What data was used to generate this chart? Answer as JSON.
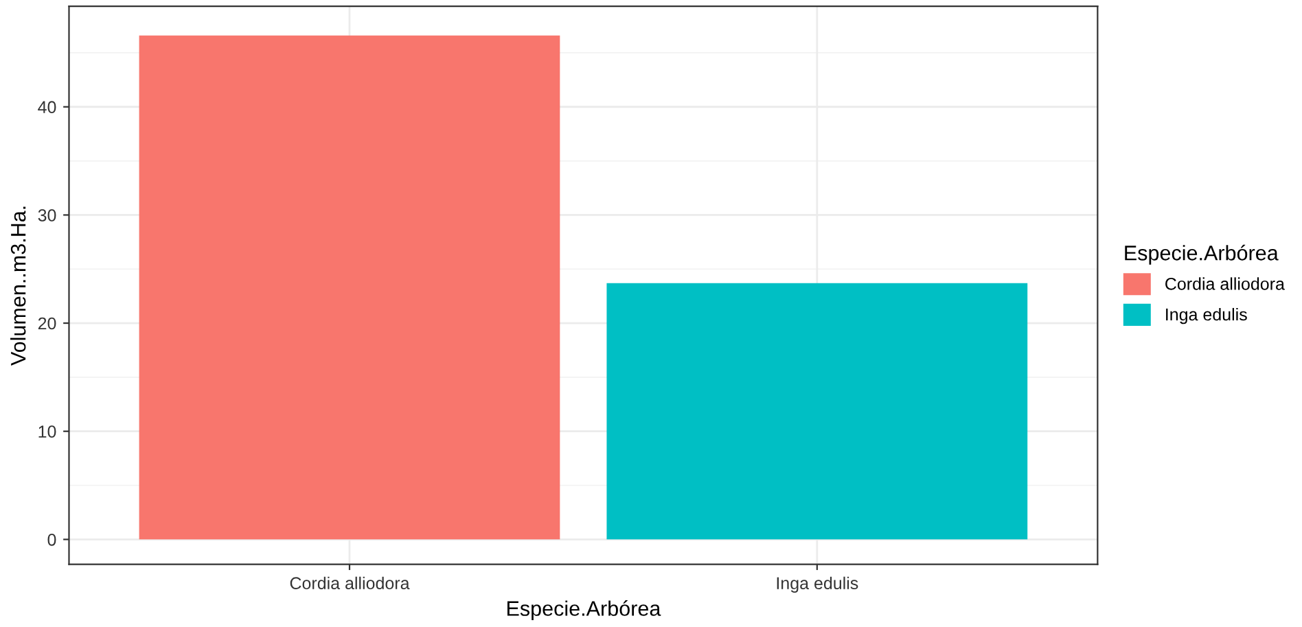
{
  "chart_data": {
    "type": "bar",
    "xlabel": "Especie.Arbórea",
    "ylabel": "Volumen..m3.Ha.",
    "legend_title": "Especie.Arbórea",
    "categories": [
      "Cordia alliodora",
      "Inga edulis"
    ],
    "series": [
      {
        "name": "Cordia alliodora",
        "color": "#f8766d",
        "values": [
          46.6,
          null
        ]
      },
      {
        "name": "Inga edulis",
        "color": "#00bfc4",
        "values": [
          null,
          23.7
        ]
      }
    ],
    "ylim": [
      -2.3,
      49.3
    ],
    "yticks": [
      0,
      10,
      20,
      30,
      40
    ],
    "grid": true,
    "legend": "right"
  }
}
